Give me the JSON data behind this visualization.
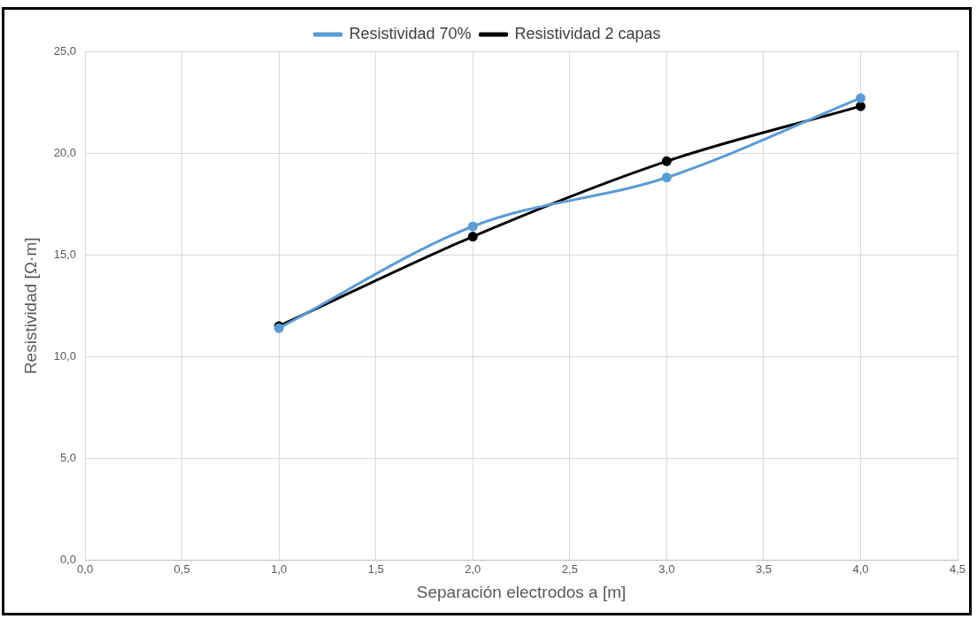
{
  "chart_data": {
    "type": "line",
    "xlabel": "Separación electrodos a [m]",
    "ylabel": "Resistividad [Ω·m]",
    "x": [
      1,
      2,
      3,
      4
    ],
    "series": [
      {
        "name": "Resistividad 70%",
        "color": "#5b9bd5",
        "values": [
          11.4,
          16.4,
          18.8,
          22.7
        ]
      },
      {
        "name": "Resistividad 2 capas",
        "color": "#000000",
        "values": [
          11.5,
          15.9,
          19.6,
          22.3
        ]
      }
    ],
    "xlim": [
      0,
      4.5
    ],
    "xticks": [
      {
        "value": 0,
        "label": "0,0"
      },
      {
        "value": 0.5,
        "label": "0,5"
      },
      {
        "value": 1,
        "label": "1,0"
      },
      {
        "value": 1.5,
        "label": "1,5"
      },
      {
        "value": 2,
        "label": "2,0"
      },
      {
        "value": 2.5,
        "label": "2,5"
      },
      {
        "value": 3,
        "label": "3,0"
      },
      {
        "value": 3.5,
        "label": "3,5"
      },
      {
        "value": 4,
        "label": "4,0"
      },
      {
        "value": 4.5,
        "label": "4,5"
      }
    ],
    "ylim": [
      0,
      25
    ],
    "yticks": [
      {
        "value": 0,
        "label": "0,0"
      },
      {
        "value": 5,
        "label": "5,0"
      },
      {
        "value": 10,
        "label": "10,0"
      },
      {
        "value": 15,
        "label": "15,0"
      },
      {
        "value": 20,
        "label": "20,0"
      },
      {
        "value": 25,
        "label": "25,0"
      }
    ],
    "grid": true,
    "legend": "top",
    "marker": "circle",
    "line_style": "solid"
  }
}
